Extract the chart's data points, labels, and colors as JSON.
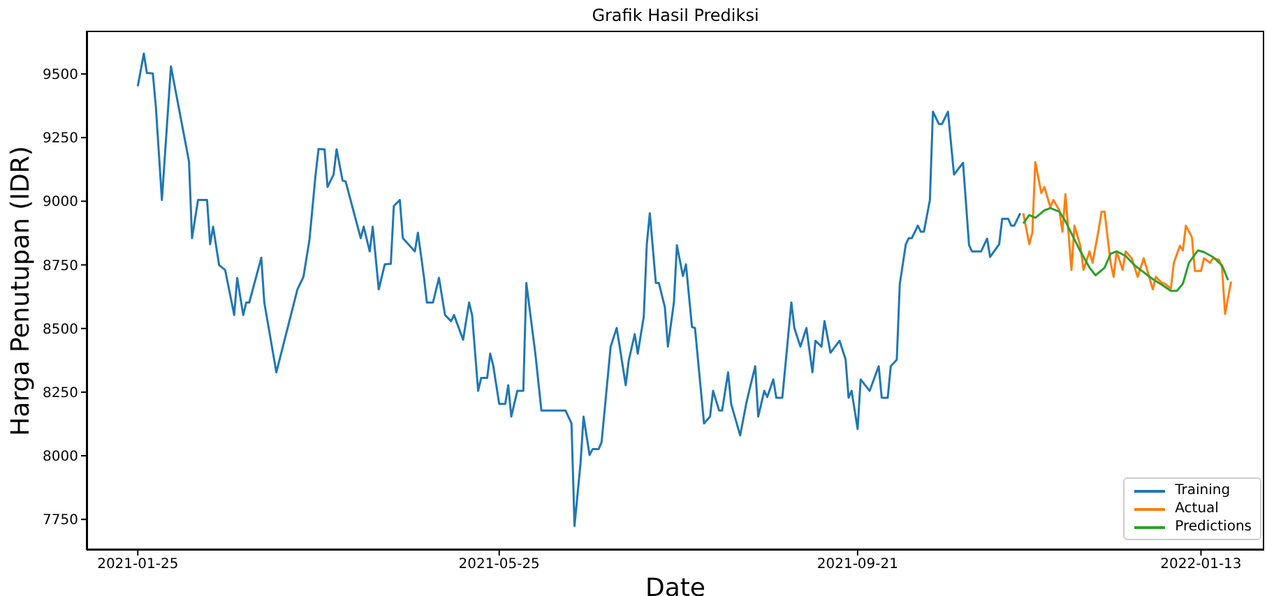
{
  "chart_data": {
    "type": "line",
    "title": "Grafik Hasil Prediksi",
    "xlabel": "Date",
    "ylabel": "Harga Penutupan (IDR)",
    "xlim": [
      "2021-01-08",
      "2022-02-03"
    ],
    "xticks": [
      "2021-01-25",
      "2021-05-25",
      "2021-09-21",
      "2022-01-13"
    ],
    "ylim": [
      7630,
      9670
    ],
    "yticks": [
      7750,
      8000,
      8250,
      8500,
      8750,
      9000,
      9250,
      9500
    ],
    "grid": false,
    "legend": "bottom right",
    "marker": "none",
    "line_style": "solid",
    "series": [
      {
        "name": "Training",
        "color": "#1f77b4",
        "x": [
          "2021-01-25",
          "2021-01-27",
          "2021-01-28",
          "2021-01-30",
          "2021-01-31",
          "2021-02-02",
          "2021-02-05",
          "2021-02-11",
          "2021-02-12",
          "2021-02-14",
          "2021-02-17",
          "2021-02-18",
          "2021-02-19",
          "2021-02-21",
          "2021-02-23",
          "2021-02-26",
          "2021-02-27",
          "2021-03-01",
          "2021-03-02",
          "2021-03-03",
          "2021-03-07",
          "2021-03-08",
          "2021-03-12",
          "2021-03-19",
          "2021-03-21",
          "2021-03-23",
          "2021-03-25",
          "2021-03-26",
          "2021-03-28",
          "2021-03-29",
          "2021-03-31",
          "2021-04-01",
          "2021-04-03",
          "2021-04-04",
          "2021-04-09",
          "2021-04-10",
          "2021-04-12",
          "2021-04-13",
          "2021-04-15",
          "2021-04-17",
          "2021-04-19",
          "2021-04-20",
          "2021-04-22",
          "2021-04-23",
          "2021-04-27",
          "2021-04-28",
          "2021-04-30",
          "2021-05-01",
          "2021-05-03",
          "2021-05-05",
          "2021-05-07",
          "2021-05-09",
          "2021-05-10",
          "2021-05-13",
          "2021-05-15",
          "2021-05-16",
          "2021-05-18",
          "2021-05-19",
          "2021-05-21",
          "2021-05-22",
          "2021-05-23",
          "2021-05-25",
          "2021-05-27",
          "2021-05-28",
          "2021-05-29",
          "2021-05-31",
          "2021-06-02",
          "2021-06-03",
          "2021-06-06",
          "2021-06-08",
          "2021-06-16",
          "2021-06-18",
          "2021-06-19",
          "2021-06-21",
          "2021-06-22",
          "2021-06-24",
          "2021-06-25",
          "2021-06-27",
          "2021-06-28",
          "2021-07-01",
          "2021-07-03",
          "2021-07-04",
          "2021-07-06",
          "2021-07-07",
          "2021-07-09",
          "2021-07-10",
          "2021-07-12",
          "2021-07-13",
          "2021-07-14",
          "2021-07-16",
          "2021-07-17",
          "2021-07-19",
          "2021-07-20",
          "2021-07-22",
          "2021-07-23",
          "2021-07-25",
          "2021-07-26",
          "2021-07-28",
          "2021-07-29",
          "2021-08-01",
          "2021-08-03",
          "2021-08-04",
          "2021-08-06",
          "2021-08-07",
          "2021-08-09",
          "2021-08-10",
          "2021-08-13",
          "2021-08-15",
          "2021-08-16",
          "2021-08-18",
          "2021-08-19",
          "2021-08-21",
          "2021-08-22",
          "2021-08-24",
          "2021-08-25",
          "2021-08-27",
          "2021-08-28",
          "2021-08-30",
          "2021-08-31",
          "2021-09-02",
          "2021-09-04",
          "2021-09-06",
          "2021-09-07",
          "2021-09-09",
          "2021-09-10",
          "2021-09-12",
          "2021-09-15",
          "2021-09-17",
          "2021-09-18",
          "2021-09-19",
          "2021-09-21",
          "2021-09-22",
          "2021-09-25",
          "2021-09-28",
          "2021-09-29",
          "2021-10-01",
          "2021-10-02",
          "2021-10-04",
          "2021-10-05",
          "2021-10-07",
          "2021-10-08",
          "2021-10-09",
          "2021-10-11",
          "2021-10-12",
          "2021-10-13",
          "2021-10-15",
          "2021-10-16",
          "2021-10-18",
          "2021-10-19",
          "2021-10-21",
          "2021-10-23",
          "2021-10-26",
          "2021-10-28",
          "2021-10-29",
          "2021-11-01",
          "2021-11-03",
          "2021-11-04",
          "2021-11-07",
          "2021-11-08",
          "2021-11-10",
          "2021-11-11",
          "2021-11-12",
          "2021-11-14"
        ],
        "values": [
          9452,
          9580,
          9504,
          9502,
          9370,
          9005,
          9530,
          9156,
          8855,
          9005,
          9005,
          8831,
          8900,
          8749,
          8730,
          8553,
          8699,
          8553,
          8602,
          8602,
          8778,
          8602,
          8328,
          8654,
          8703,
          8849,
          9101,
          9205,
          9204,
          9056,
          9105,
          9204,
          9081,
          9078,
          8855,
          8900,
          8803,
          8900,
          8654,
          8752,
          8754,
          8981,
          9005,
          8855,
          8803,
          8876,
          8703,
          8602,
          8602,
          8699,
          8553,
          8529,
          8553,
          8456,
          8602,
          8553,
          8255,
          8306,
          8306,
          8401,
          8355,
          8204,
          8204,
          8277,
          8154,
          8255,
          8255,
          8679,
          8401,
          8178,
          8178,
          8127,
          7724,
          7971,
          8154,
          8003,
          8026,
          8026,
          8054,
          8429,
          8502,
          8429,
          8277,
          8374,
          8478,
          8401,
          8547,
          8831,
          8953,
          8679,
          8679,
          8584,
          8429,
          8602,
          8827,
          8706,
          8752,
          8506,
          8502,
          8127,
          8154,
          8255,
          8178,
          8178,
          8328,
          8204,
          8080,
          8204,
          8255,
          8352,
          8154,
          8255,
          8231,
          8300,
          8228,
          8228,
          8352,
          8602,
          8502,
          8429,
          8502,
          8328,
          8452,
          8429,
          8529,
          8405,
          8452,
          8379,
          8228,
          8255,
          8105,
          8300,
          8255,
          8352,
          8228,
          8228,
          8352,
          8377,
          8675,
          8831,
          8855,
          8855,
          8904,
          8880,
          8880,
          9005,
          9352,
          9303,
          9303,
          9352,
          9105,
          9151,
          8827,
          8803,
          8803,
          8853,
          8781,
          8831,
          8931,
          8931,
          8904,
          8904,
          8953
        ]
      },
      {
        "name": "Actual",
        "color": "#ff7f0e",
        "x": [
          "2021-11-15",
          "2021-11-17",
          "2021-11-18",
          "2021-11-19",
          "2021-11-21",
          "2021-11-22",
          "2021-11-24",
          "2021-11-25",
          "2021-11-27",
          "2021-11-28",
          "2021-11-29",
          "2021-12-01",
          "2021-12-02",
          "2021-12-04",
          "2021-12-05",
          "2021-12-07",
          "2021-12-08",
          "2021-12-10",
          "2021-12-11",
          "2021-12-12",
          "2021-12-14",
          "2021-12-15",
          "2021-12-16",
          "2021-12-18",
          "2021-12-19",
          "2021-12-21",
          "2021-12-23",
          "2021-12-25",
          "2021-12-28",
          "2021-12-29",
          "2021-12-31",
          "2022-01-01",
          "2022-01-03",
          "2022-01-04",
          "2022-01-06",
          "2022-01-07",
          "2022-01-08",
          "2022-01-10",
          "2022-01-11",
          "2022-01-13",
          "2022-01-14",
          "2022-01-16",
          "2022-01-17",
          "2022-01-19",
          "2022-01-20",
          "2022-01-21",
          "2022-01-23"
        ],
        "values": [
          8953,
          8831,
          8876,
          9154,
          9032,
          9056,
          8977,
          9005,
          8964,
          8880,
          9028,
          8730,
          8904,
          8822,
          8730,
          8803,
          8758,
          8886,
          8959,
          8959,
          8758,
          8703,
          8803,
          8730,
          8803,
          8776,
          8703,
          8776,
          8654,
          8703,
          8679,
          8676,
          8657,
          8758,
          8825,
          8807,
          8904,
          8858,
          8726,
          8726,
          8776,
          8758,
          8776,
          8770,
          8739,
          8557,
          8684
        ]
      },
      {
        "name": "Predictions",
        "color": "#2ca02c",
        "x": [
          "2021-11-15",
          "2021-11-17",
          "2021-11-19",
          "2021-11-22",
          "2021-11-24",
          "2021-11-27",
          "2021-11-29",
          "2021-12-01",
          "2021-12-04",
          "2021-12-07",
          "2021-12-09",
          "2021-12-12",
          "2021-12-14",
          "2021-12-16",
          "2021-12-19",
          "2021-12-22",
          "2021-12-25",
          "2021-12-28",
          "2021-12-31",
          "2022-01-03",
          "2022-01-05",
          "2022-01-07",
          "2022-01-09",
          "2022-01-12",
          "2022-01-14",
          "2022-01-17",
          "2022-01-20",
          "2022-01-22"
        ],
        "values": [
          8913,
          8946,
          8935,
          8964,
          8973,
          8959,
          8922,
          8873,
          8803,
          8739,
          8709,
          8739,
          8794,
          8803,
          8785,
          8748,
          8721,
          8694,
          8672,
          8648,
          8648,
          8676,
          8758,
          8807,
          8800,
          8781,
          8748,
          8690
        ]
      }
    ]
  }
}
